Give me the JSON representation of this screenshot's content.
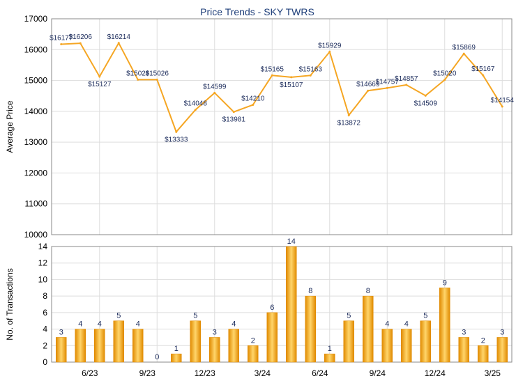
{
  "chart_data": {
    "title": "Price Trends - SKY TWRS",
    "colors": {
      "line": "#f5a623",
      "bar_dark": "#e08a00",
      "bar_light": "#ffd56a"
    },
    "x_tick_labels": [
      "6/23",
      "9/23",
      "12/23",
      "3/24",
      "6/24",
      "9/24",
      "12/24",
      "3/25"
    ],
    "price_chart": {
      "type": "line",
      "ylabel": "Average Price",
      "ylim": [
        10000,
        17000
      ],
      "yticks": [
        10000,
        11000,
        12000,
        13000,
        14000,
        15000,
        16000,
        17000
      ],
      "grid": true,
      "values": [
        16177,
        16206,
        15127,
        16214,
        15026,
        15026,
        13333,
        14048,
        14599,
        13981,
        14210,
        15165,
        15107,
        15163,
        15929,
        13872,
        14669,
        14757,
        14857,
        14509,
        15020,
        15869,
        15167,
        14154
      ],
      "labels": [
        "$16177",
        "$16206",
        "$15127",
        "$16214",
        "$15026",
        "$15026",
        "$13333",
        "$14048",
        "$14599",
        "$13981",
        "$14210",
        "$15165",
        "$15107",
        "$15163",
        "$15929",
        "$13872",
        "$14669",
        "$14757",
        "$14857",
        "$14509",
        "$15020",
        "$15869",
        "$15167",
        "$14154"
      ]
    },
    "volume_chart": {
      "type": "bar",
      "ylabel": "No. of Transactions",
      "ylim": [
        0,
        14
      ],
      "yticks": [
        0,
        2,
        4,
        6,
        8,
        10,
        12,
        14
      ],
      "grid": true,
      "values": [
        3,
        4,
        4,
        5,
        4,
        0,
        1,
        5,
        3,
        4,
        2,
        6,
        14,
        8,
        1,
        5,
        8,
        4,
        4,
        5,
        9,
        3,
        2,
        3
      ]
    }
  }
}
